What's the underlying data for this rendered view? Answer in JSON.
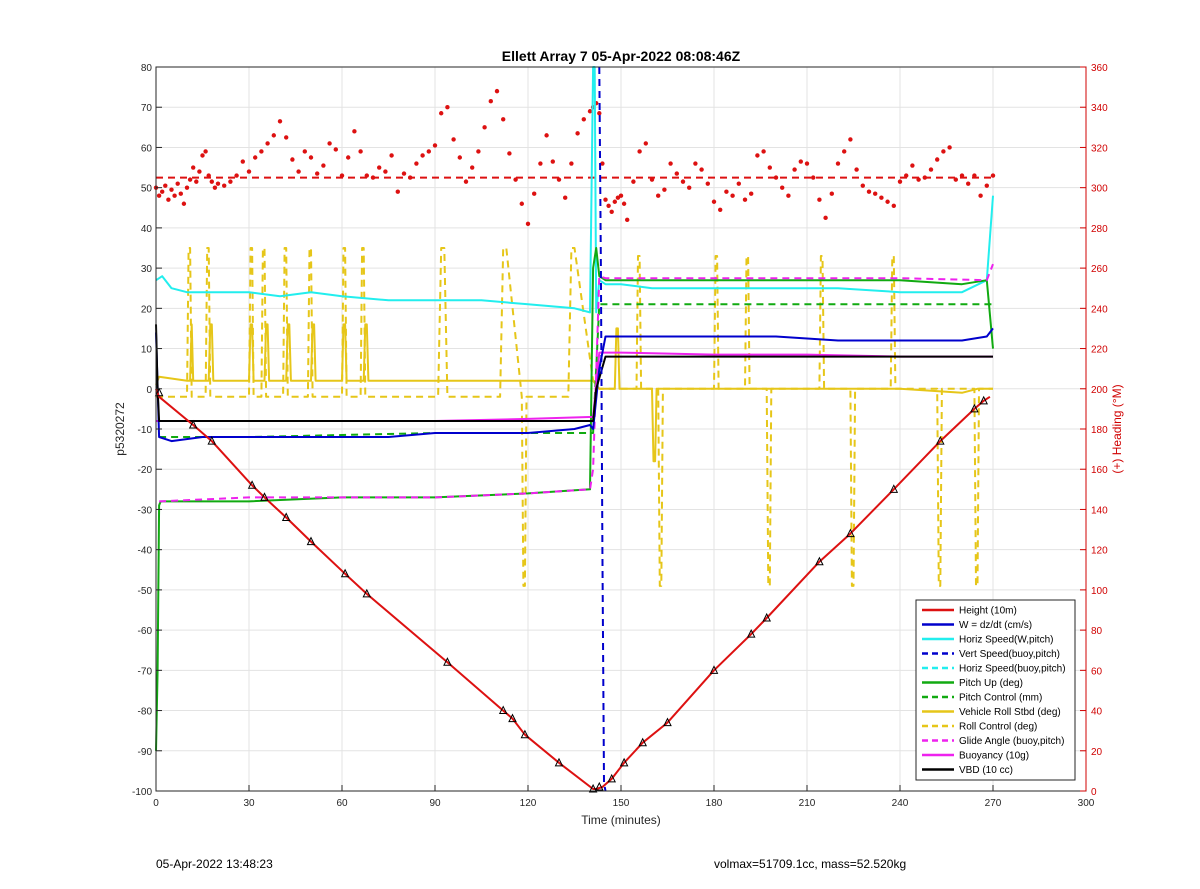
{
  "footer": {
    "left": "05-Apr-2022 13:48:23",
    "right": "volmax=51709.1cc, mass=52.520kg"
  },
  "chart_data": {
    "type": "line",
    "title": "Ellett Array 7 05-Apr-2022 08:08:46Z",
    "xlabel": "Time (minutes)",
    "ylabel": "p5320272",
    "ylabel_right": "(+) Heading (°M)",
    "xlim": [
      0,
      300
    ],
    "ylim": [
      -100,
      80
    ],
    "ylim_right": [
      0,
      360
    ],
    "x_ticks": [
      0,
      30,
      60,
      90,
      120,
      150,
      180,
      210,
      240,
      270,
      300
    ],
    "y_ticks": [
      -100,
      -90,
      -80,
      -70,
      -60,
      -50,
      -40,
      -30,
      -20,
      -10,
      0,
      10,
      20,
      30,
      40,
      50,
      60,
      70,
      80
    ],
    "y_ticks_right": [
      0,
      20,
      40,
      60,
      80,
      100,
      120,
      140,
      160,
      180,
      200,
      220,
      240,
      260,
      280,
      300,
      320,
      340,
      360
    ],
    "grid": true,
    "legend_position": "bottom-right",
    "colors": {
      "red": "#dd1111",
      "blue": "#0000cc",
      "cyan": "#22eeee",
      "green": "#11aa11",
      "yellow": "#e6c619",
      "magenta": "#ee22ee",
      "black": "#000000"
    },
    "legend": [
      {
        "label": "Height (10m)",
        "color": "red",
        "style": "solid"
      },
      {
        "label": "W = dz/dt (cm/s)",
        "color": "blue",
        "style": "solid"
      },
      {
        "label": "Horiz Speed(W,pitch)",
        "color": "cyan",
        "style": "solid"
      },
      {
        "label": "Vert Speed(buoy,pitch)",
        "color": "blue",
        "style": "dashed"
      },
      {
        "label": "Horiz Speed(buoy,pitch)",
        "color": "cyan",
        "style": "dashed"
      },
      {
        "label": "Pitch Up (deg)",
        "color": "green",
        "style": "solid"
      },
      {
        "label": "Pitch Control (mm)",
        "color": "green",
        "style": "dashed"
      },
      {
        "label": "Vehicle Roll Stbd (deg)",
        "color": "yellow",
        "style": "solid"
      },
      {
        "label": "Roll Control (deg)",
        "color": "yellow",
        "style": "dashed"
      },
      {
        "label": "Glide Angle (buoy,pitch)",
        "color": "magenta",
        "style": "dashed"
      },
      {
        "label": "Buoyancy (10g)",
        "color": "magenta",
        "style": "solid"
      },
      {
        "label": "VBD (10 cc)",
        "color": "black",
        "style": "solid"
      }
    ],
    "series": [
      {
        "name": "Height (10m)",
        "color": "red",
        "style": "solid",
        "x": [
          0,
          1,
          12,
          18,
          31,
          35,
          42,
          50,
          61,
          68,
          94,
          112,
          115,
          119,
          130,
          141,
          142,
          144,
          147,
          151,
          157,
          165,
          180,
          192,
          197,
          214,
          224,
          238,
          253,
          264,
          267,
          269
        ],
        "y": [
          0,
          -2,
          -9,
          -13,
          -24,
          -27,
          -32,
          -38,
          -46,
          -51,
          -68,
          -80,
          -82,
          -86,
          -93,
          -99.5,
          -99.5,
          -99,
          -97,
          -93,
          -88,
          -83,
          -70,
          -61,
          -57,
          -43,
          -36,
          -25,
          -13,
          -5,
          -3,
          -2
        ]
      },
      {
        "name": "Height markers",
        "color": "black",
        "style": "markers",
        "x": [
          1,
          12,
          18,
          31,
          35,
          42,
          50,
          61,
          68,
          94,
          112,
          115,
          119,
          130,
          141,
          143,
          147,
          151,
          157,
          165,
          180,
          192,
          197,
          214,
          224,
          238,
          253,
          264,
          267
        ],
        "y": [
          -1,
          -9,
          -13,
          -24,
          -27,
          -32,
          -38,
          -46,
          -51,
          -68,
          -80,
          -82,
          -86,
          -93,
          -99.5,
          -99,
          -97,
          -93,
          -88,
          -83,
          -70,
          -61,
          -57,
          -43,
          -36,
          -25,
          -13,
          -5,
          -3
        ]
      },
      {
        "name": "W = dz/dt (cm/s)",
        "color": "blue",
        "style": "solid",
        "x": [
          0,
          1,
          5,
          15,
          30,
          45,
          60,
          75,
          90,
          105,
          120,
          135,
          140,
          141,
          143,
          145,
          150,
          160,
          180,
          200,
          220,
          240,
          260,
          268,
          270
        ],
        "y": [
          14,
          -12,
          -13,
          -12,
          -12,
          -12,
          -12,
          -12,
          -11,
          -11,
          -11,
          -10,
          -9,
          -10,
          5,
          13,
          13,
          13,
          13,
          13,
          12,
          12,
          12,
          13,
          15
        ]
      },
      {
        "name": "Horiz Speed(W,pitch)",
        "color": "cyan",
        "style": "solid",
        "x": [
          0,
          2,
          5,
          10,
          20,
          30,
          40,
          50,
          60,
          75,
          90,
          105,
          120,
          135,
          140,
          141,
          141.5,
          142,
          143,
          145,
          150,
          160,
          180,
          200,
          220,
          240,
          260,
          268,
          270
        ],
        "y": [
          27,
          28,
          25,
          24,
          24,
          24,
          23,
          24,
          23,
          22,
          22,
          22,
          21,
          20,
          19,
          80,
          80,
          19,
          27,
          26,
          26,
          25,
          25,
          25,
          25,
          24,
          24,
          27,
          48
        ]
      },
      {
        "name": "Vert Speed(buoy,pitch)",
        "color": "blue",
        "style": "dashed",
        "x": [
          143,
          143.5,
          144,
          144.5,
          145
        ],
        "y": [
          80,
          30,
          -40,
          -98,
          -100
        ]
      },
      {
        "name": "Pitch Up (deg)",
        "color": "green",
        "style": "solid",
        "x": [
          0,
          0.5,
          1,
          1.5,
          2,
          4,
          10,
          30,
          60,
          90,
          120,
          140,
          141,
          142,
          143,
          145,
          150,
          180,
          210,
          240,
          260,
          268,
          270
        ],
        "y": [
          -90,
          -70,
          -29,
          -28,
          -28,
          -28,
          -28,
          -28,
          -27,
          -27,
          -26,
          -25,
          30,
          35,
          28,
          27,
          27,
          27,
          27,
          27,
          26,
          27,
          10
        ]
      },
      {
        "name": "Pitch Control (mm)",
        "color": "green",
        "style": "dashed",
        "x": [
          1,
          30,
          60,
          90,
          120,
          141,
          143,
          150,
          180,
          210,
          240,
          270
        ],
        "y": [
          -12,
          -12,
          -11.5,
          -11,
          -11,
          -11,
          21,
          21,
          21,
          21,
          21,
          21
        ]
      },
      {
        "name": "Buoyancy (10g)",
        "color": "magenta",
        "style": "solid",
        "x": [
          0,
          2,
          30,
          60,
          90,
          120,
          141,
          143,
          150,
          180,
          210,
          240,
          270
        ],
        "y": [
          -8,
          -8,
          -8,
          -8,
          -8,
          -7.5,
          -7,
          9,
          9,
          8.5,
          8.5,
          8,
          8
        ]
      },
      {
        "name": "Glide Angle (buoy,pitch)",
        "color": "magenta",
        "style": "dashed",
        "x": [
          1,
          30,
          60,
          90,
          120,
          140,
          141,
          143,
          145,
          180,
          210,
          240,
          268,
          270
        ],
        "y": [
          -28,
          -27,
          -27,
          -27,
          -26,
          -25,
          -20,
          28,
          27.5,
          27.5,
          27.5,
          27.5,
          27,
          31
        ]
      },
      {
        "name": "VBD (10 cc)",
        "color": "black",
        "style": "solid",
        "x": [
          0,
          0.5,
          1,
          2,
          30,
          60,
          90,
          120,
          141,
          142,
          145,
          150,
          180,
          210,
          240,
          270
        ],
        "y": [
          16,
          0,
          -8,
          -8,
          -8,
          -8,
          -8,
          -8,
          -8,
          0,
          8,
          8,
          8,
          8,
          8,
          8
        ]
      },
      {
        "name": "Vehicle Roll Stbd (deg)",
        "color": "yellow",
        "style": "solid",
        "x": [
          0,
          1,
          10,
          11,
          11.5,
          12,
          17,
          17.5,
          18,
          18.5,
          30,
          30.5,
          31,
          31.5,
          35,
          35.5,
          36,
          36.5,
          42,
          42.5,
          43,
          43.5,
          50,
          50.5,
          51,
          51.5,
          60,
          60.5,
          61,
          61.5,
          67,
          67.5,
          68,
          68.5,
          90,
          120,
          138,
          141,
          143,
          145,
          146,
          148,
          148.5,
          149,
          149.5,
          160,
          160.5,
          161,
          161.5,
          190,
          210,
          240,
          260,
          265,
          270
        ],
        "y": [
          1,
          3,
          2,
          2,
          16,
          2,
          2,
          16,
          16,
          2,
          2,
          16,
          16,
          2,
          2,
          16,
          16,
          2,
          2,
          16,
          16,
          2,
          2,
          16,
          16,
          2,
          2,
          16,
          16,
          2,
          2,
          16,
          16,
          2,
          2,
          2,
          2,
          2,
          0,
          0,
          0,
          0,
          15,
          15,
          0,
          0,
          -18,
          -18,
          0,
          0,
          0,
          0,
          -1,
          0,
          0
        ]
      },
      {
        "name": "Roll Control (deg)",
        "color": "yellow",
        "style": "dashed",
        "x": [
          0,
          10,
          10.5,
          11,
          11.5,
          16,
          16.5,
          17,
          17.5,
          30,
          30.5,
          31,
          31.5,
          34,
          34.5,
          35,
          35.5,
          41,
          41.5,
          42,
          42.5,
          49,
          49.5,
          50,
          50.5,
          60,
          60.5,
          61,
          61.5,
          66,
          66.5,
          67,
          67.5,
          90,
          91,
          92,
          93,
          94,
          95,
          110,
          111,
          112,
          113,
          118,
          118.5,
          119,
          119.5,
          132,
          133,
          134,
          135,
          141,
          143,
          145,
          150,
          155,
          155.5,
          156,
          156.5,
          162,
          162.5,
          163,
          163.5,
          180,
          180.5,
          181,
          181.5,
          190,
          190.5,
          191,
          191.5,
          197,
          197.5,
          198,
          198.5,
          214,
          214.5,
          215,
          215.5,
          224,
          224.5,
          225,
          225.5,
          237,
          237.5,
          238,
          238.5,
          252,
          252.5,
          253,
          253.5,
          264,
          264.5,
          265,
          265.5,
          270
        ],
        "y": [
          -2,
          -2,
          35,
          35,
          -2,
          -2,
          35,
          35,
          -2,
          -2,
          35,
          35,
          -2,
          -2,
          35,
          35,
          -2,
          -2,
          35,
          35,
          -2,
          -2,
          35,
          35,
          -2,
          -2,
          35,
          35,
          -2,
          -2,
          35,
          35,
          -2,
          -2,
          -2,
          35,
          35,
          -2,
          -2,
          -2,
          -2,
          35,
          35,
          -2,
          -49,
          -49,
          -2,
          -2,
          -2,
          35,
          35,
          2,
          0,
          0,
          0,
          0,
          33,
          33,
          0,
          0,
          -49,
          -49,
          0,
          0,
          33,
          33,
          0,
          0,
          33,
          33,
          0,
          0,
          -49,
          -49,
          0,
          0,
          33,
          33,
          0,
          0,
          -49,
          -49,
          0,
          0,
          33,
          33,
          0,
          0,
          -49,
          -49,
          0,
          0,
          -49,
          -49,
          0,
          0
        ]
      },
      {
        "name": "Heading",
        "color": "red",
        "style": "dots",
        "axis": "right",
        "x": [
          0,
          1,
          2,
          3,
          4,
          5,
          6,
          7,
          8,
          9,
          10,
          11,
          12,
          13,
          14,
          15,
          16,
          17,
          18,
          19,
          20,
          22,
          24,
          26,
          28,
          30,
          32,
          34,
          36,
          38,
          40,
          42,
          44,
          46,
          48,
          50,
          52,
          54,
          56,
          58,
          60,
          62,
          64,
          66,
          68,
          70,
          72,
          74,
          76,
          78,
          80,
          82,
          84,
          86,
          88,
          90,
          92,
          94,
          96,
          98,
          100,
          102,
          104,
          106,
          108,
          110,
          112,
          114,
          116,
          118,
          120,
          122,
          124,
          126,
          128,
          130,
          132,
          134,
          136,
          138,
          140,
          141,
          142,
          143,
          144,
          145,
          146,
          147,
          148,
          149,
          150,
          151,
          152,
          154,
          156,
          158,
          160,
          162,
          164,
          166,
          168,
          170,
          172,
          174,
          176,
          178,
          180,
          182,
          184,
          186,
          188,
          190,
          192,
          194,
          196,
          198,
          200,
          202,
          204,
          206,
          208,
          210,
          212,
          214,
          216,
          218,
          220,
          222,
          224,
          226,
          228,
          230,
          232,
          234,
          236,
          238,
          240,
          242,
          244,
          246,
          248,
          250,
          252,
          254,
          256,
          258,
          260,
          262,
          264,
          266,
          268,
          270
        ],
        "y": [
          300,
          296,
          298,
          301,
          294,
          299,
          296,
          302,
          297,
          292,
          300,
          304,
          310,
          303,
          308,
          316,
          318,
          306,
          303,
          300,
          302,
          301,
          303,
          306,
          313,
          308,
          315,
          318,
          322,
          326,
          333,
          325,
          314,
          308,
          318,
          315,
          307,
          311,
          322,
          319,
          306,
          315,
          328,
          318,
          306,
          305,
          310,
          308,
          316,
          298,
          307,
          305,
          312,
          316,
          318,
          321,
          337,
          340,
          324,
          315,
          303,
          310,
          318,
          330,
          343,
          348,
          334,
          317,
          304,
          292,
          282,
          297,
          312,
          326,
          313,
          304,
          295,
          312,
          327,
          334,
          338,
          340,
          342,
          337,
          312,
          294,
          291,
          288,
          293,
          295,
          296,
          292,
          284,
          303,
          318,
          322,
          304,
          296,
          299,
          312,
          307,
          303,
          300,
          312,
          309,
          302,
          293,
          289,
          298,
          296,
          302,
          294,
          297,
          316,
          318,
          310,
          305,
          300,
          296,
          309,
          313,
          312,
          305,
          294,
          285,
          297,
          312,
          318,
          324,
          309,
          301,
          298,
          297,
          295,
          293,
          291,
          303,
          306,
          311,
          304,
          305,
          309,
          314,
          318,
          320,
          304,
          306,
          302,
          306,
          296,
          301,
          306
        ]
      },
      {
        "name": "Heading reference",
        "color": "red",
        "style": "dashed",
        "axis": "right",
        "x": [
          0,
          270
        ],
        "y": [
          305,
          305
        ]
      }
    ]
  }
}
